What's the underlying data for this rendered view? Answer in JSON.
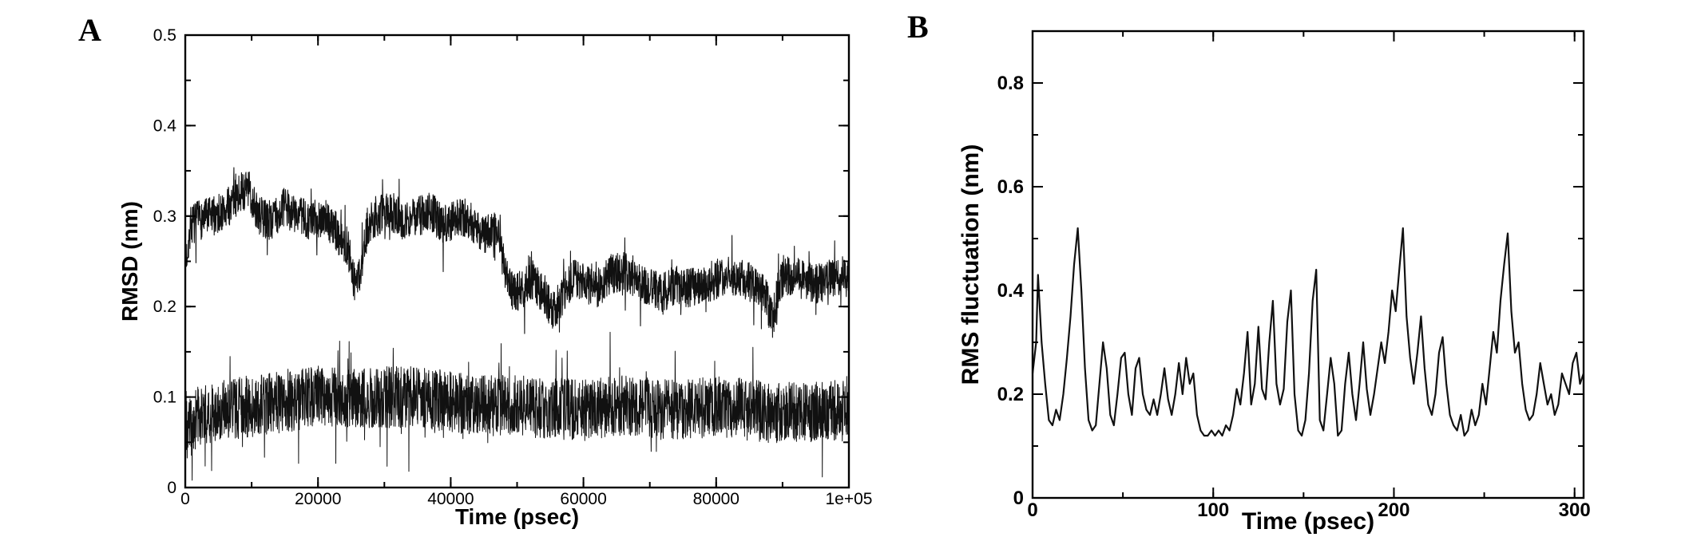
{
  "page": {
    "background": "#ffffff",
    "ink_color": "#000000"
  },
  "panels": [
    {
      "label": "A"
    },
    {
      "label": "B"
    }
  ],
  "chart_data": [
    {
      "type": "line",
      "panel": "A",
      "title": "",
      "xlabel": "Time (psec)",
      "ylabel": "RMSD (nm)",
      "xlim": [
        0,
        100000
      ],
      "ylim": [
        0,
        0.5
      ],
      "grid": false,
      "legend": null,
      "xticks": {
        "values": [
          0,
          20000,
          40000,
          60000,
          80000,
          100000
        ],
        "labels": [
          "0",
          "20000",
          "40000",
          "60000",
          "80000",
          "1e+05"
        ]
      },
      "yticks": {
        "values": [
          0,
          0.1,
          0.2,
          0.3,
          0.4,
          0.5
        ],
        "labels": [
          "0",
          "0.1",
          "0.2",
          "0.3",
          "0.4",
          "0.5"
        ]
      },
      "x_minor_step": 10000,
      "y_minor_step": 0.05,
      "series": [
        {
          "name": "upper trace (RMSD ~0.30 nm dropping to ~0.22 nm after 48000 psec)",
          "color": "#111111",
          "style": "noisy",
          "stroke_width": 1.1,
          "points_per_trace": 2800,
          "noise_amplitude": 0.022,
          "seed": 7,
          "envelope": [
            [
              0,
              0.245
            ],
            [
              800,
              0.29
            ],
            [
              2000,
              0.295
            ],
            [
              4000,
              0.3
            ],
            [
              6000,
              0.305
            ],
            [
              8000,
              0.325
            ],
            [
              9500,
              0.33
            ],
            [
              11000,
              0.3
            ],
            [
              13000,
              0.295
            ],
            [
              15000,
              0.31
            ],
            [
              17000,
              0.3
            ],
            [
              19000,
              0.295
            ],
            [
              21000,
              0.3
            ],
            [
              23000,
              0.28
            ],
            [
              24500,
              0.265
            ],
            [
              25500,
              0.225
            ],
            [
              26500,
              0.24
            ],
            [
              27500,
              0.29
            ],
            [
              29000,
              0.3
            ],
            [
              31000,
              0.305
            ],
            [
              33000,
              0.295
            ],
            [
              35000,
              0.3
            ],
            [
              37000,
              0.305
            ],
            [
              39000,
              0.29
            ],
            [
              41000,
              0.3
            ],
            [
              43000,
              0.295
            ],
            [
              45000,
              0.28
            ],
            [
              46500,
              0.285
            ],
            [
              47500,
              0.27
            ],
            [
              48500,
              0.23
            ],
            [
              49500,
              0.215
            ],
            [
              51000,
              0.22
            ],
            [
              52500,
              0.23
            ],
            [
              54000,
              0.21
            ],
            [
              55500,
              0.195
            ],
            [
              57000,
              0.215
            ],
            [
              58500,
              0.23
            ],
            [
              60000,
              0.225
            ],
            [
              62000,
              0.22
            ],
            [
              64000,
              0.235
            ],
            [
              66000,
              0.24
            ],
            [
              68000,
              0.23
            ],
            [
              70000,
              0.22
            ],
            [
              72000,
              0.215
            ],
            [
              74000,
              0.225
            ],
            [
              76000,
              0.22
            ],
            [
              78000,
              0.225
            ],
            [
              80000,
              0.23
            ],
            [
              82000,
              0.235
            ],
            [
              84000,
              0.23
            ],
            [
              86000,
              0.225
            ],
            [
              87500,
              0.21
            ],
            [
              88500,
              0.185
            ],
            [
              89500,
              0.225
            ],
            [
              91000,
              0.235
            ],
            [
              93000,
              0.23
            ],
            [
              95000,
              0.225
            ],
            [
              97000,
              0.23
            ],
            [
              99000,
              0.235
            ],
            [
              100000,
              0.23
            ]
          ]
        },
        {
          "name": "lower trace (RMSD ~0.09 nm throughout)",
          "color": "#111111",
          "style": "noisy",
          "stroke_width": 1.0,
          "points_per_trace": 2800,
          "noise_amplitude": 0.034,
          "seed": 23,
          "envelope": [
            [
              0,
              0.06
            ],
            [
              2000,
              0.08
            ],
            [
              5000,
              0.085
            ],
            [
              10000,
              0.09
            ],
            [
              15000,
              0.095
            ],
            [
              20000,
              0.1
            ],
            [
              25000,
              0.1
            ],
            [
              30000,
              0.1
            ],
            [
              35000,
              0.1
            ],
            [
              40000,
              0.095
            ],
            [
              45000,
              0.09
            ],
            [
              50000,
              0.09
            ],
            [
              55000,
              0.088
            ],
            [
              60000,
              0.085
            ],
            [
              65000,
              0.09
            ],
            [
              70000,
              0.088
            ],
            [
              75000,
              0.085
            ],
            [
              80000,
              0.09
            ],
            [
              85000,
              0.086
            ],
            [
              90000,
              0.082
            ],
            [
              95000,
              0.085
            ],
            [
              100000,
              0.085
            ]
          ]
        }
      ]
    },
    {
      "type": "line",
      "panel": "B",
      "title": "",
      "xlabel": "Time (psec)",
      "ylabel": "RMS fluctuation  (nm)",
      "xlim": [
        0,
        305
      ],
      "ylim": [
        0,
        0.9
      ],
      "grid": false,
      "legend": null,
      "xticks": {
        "values": [
          0,
          100,
          200,
          300
        ],
        "labels": [
          "0",
          "100",
          "200",
          "300"
        ]
      },
      "yticks": {
        "values": [
          0,
          0.2,
          0.4,
          0.6,
          0.8
        ],
        "labels": [
          "0",
          "0.2",
          "0.4",
          "0.6",
          "0.8"
        ]
      },
      "x_minor_step": 50,
      "y_minor_step": 0.1,
      "series": [
        {
          "name": "RMS fluctuation trace",
          "color": "#111111",
          "style": "explicit",
          "stroke_width": 2.2,
          "points": [
            [
              0,
              0.24
            ],
            [
              2,
              0.3
            ],
            [
              3,
              0.43
            ],
            [
              5,
              0.3
            ],
            [
              7,
              0.22
            ],
            [
              9,
              0.15
            ],
            [
              11,
              0.14
            ],
            [
              13,
              0.17
            ],
            [
              15,
              0.15
            ],
            [
              17,
              0.2
            ],
            [
              19,
              0.27
            ],
            [
              21,
              0.35
            ],
            [
              23,
              0.45
            ],
            [
              25,
              0.52
            ],
            [
              27,
              0.4
            ],
            [
              29,
              0.25
            ],
            [
              31,
              0.15
            ],
            [
              33,
              0.13
            ],
            [
              35,
              0.14
            ],
            [
              37,
              0.22
            ],
            [
              39,
              0.3
            ],
            [
              41,
              0.25
            ],
            [
              43,
              0.16
            ],
            [
              45,
              0.14
            ],
            [
              47,
              0.2
            ],
            [
              49,
              0.27
            ],
            [
              51,
              0.28
            ],
            [
              53,
              0.2
            ],
            [
              55,
              0.16
            ],
            [
              57,
              0.25
            ],
            [
              59,
              0.27
            ],
            [
              61,
              0.2
            ],
            [
              63,
              0.17
            ],
            [
              65,
              0.16
            ],
            [
              67,
              0.19
            ],
            [
              69,
              0.16
            ],
            [
              71,
              0.2
            ],
            [
              73,
              0.25
            ],
            [
              75,
              0.19
            ],
            [
              77,
              0.16
            ],
            [
              79,
              0.2
            ],
            [
              81,
              0.26
            ],
            [
              83,
              0.2
            ],
            [
              85,
              0.27
            ],
            [
              87,
              0.22
            ],
            [
              89,
              0.24
            ],
            [
              91,
              0.16
            ],
            [
              93,
              0.13
            ],
            [
              95,
              0.12
            ],
            [
              97,
              0.12
            ],
            [
              99,
              0.13
            ],
            [
              101,
              0.12
            ],
            [
              103,
              0.13
            ],
            [
              105,
              0.12
            ],
            [
              107,
              0.14
            ],
            [
              109,
              0.13
            ],
            [
              111,
              0.16
            ],
            [
              113,
              0.21
            ],
            [
              115,
              0.18
            ],
            [
              117,
              0.24
            ],
            [
              119,
              0.32
            ],
            [
              121,
              0.18
            ],
            [
              123,
              0.22
            ],
            [
              125,
              0.33
            ],
            [
              127,
              0.21
            ],
            [
              129,
              0.19
            ],
            [
              131,
              0.3
            ],
            [
              133,
              0.38
            ],
            [
              135,
              0.22
            ],
            [
              137,
              0.18
            ],
            [
              139,
              0.21
            ],
            [
              141,
              0.34
            ],
            [
              143,
              0.4
            ],
            [
              145,
              0.2
            ],
            [
              147,
              0.13
            ],
            [
              149,
              0.12
            ],
            [
              151,
              0.15
            ],
            [
              153,
              0.24
            ],
            [
              155,
              0.38
            ],
            [
              157,
              0.44
            ],
            [
              159,
              0.15
            ],
            [
              161,
              0.13
            ],
            [
              163,
              0.2
            ],
            [
              165,
              0.27
            ],
            [
              167,
              0.22
            ],
            [
              169,
              0.12
            ],
            [
              171,
              0.13
            ],
            [
              173,
              0.22
            ],
            [
              175,
              0.28
            ],
            [
              177,
              0.2
            ],
            [
              179,
              0.15
            ],
            [
              181,
              0.22
            ],
            [
              183,
              0.3
            ],
            [
              185,
              0.21
            ],
            [
              187,
              0.16
            ],
            [
              189,
              0.2
            ],
            [
              191,
              0.25
            ],
            [
              193,
              0.3
            ],
            [
              195,
              0.26
            ],
            [
              197,
              0.32
            ],
            [
              199,
              0.4
            ],
            [
              201,
              0.36
            ],
            [
              203,
              0.44
            ],
            [
              205,
              0.52
            ],
            [
              207,
              0.35
            ],
            [
              209,
              0.27
            ],
            [
              211,
              0.22
            ],
            [
              213,
              0.28
            ],
            [
              215,
              0.35
            ],
            [
              217,
              0.25
            ],
            [
              219,
              0.18
            ],
            [
              221,
              0.16
            ],
            [
              223,
              0.2
            ],
            [
              225,
              0.28
            ],
            [
              227,
              0.31
            ],
            [
              229,
              0.22
            ],
            [
              231,
              0.16
            ],
            [
              233,
              0.14
            ],
            [
              235,
              0.13
            ],
            [
              237,
              0.16
            ],
            [
              239,
              0.12
            ],
            [
              241,
              0.13
            ],
            [
              243,
              0.17
            ],
            [
              245,
              0.14
            ],
            [
              247,
              0.16
            ],
            [
              249,
              0.22
            ],
            [
              251,
              0.18
            ],
            [
              253,
              0.25
            ],
            [
              255,
              0.32
            ],
            [
              257,
              0.28
            ],
            [
              259,
              0.38
            ],
            [
              261,
              0.45
            ],
            [
              263,
              0.51
            ],
            [
              265,
              0.36
            ],
            [
              267,
              0.28
            ],
            [
              269,
              0.3
            ],
            [
              271,
              0.22
            ],
            [
              273,
              0.17
            ],
            [
              275,
              0.15
            ],
            [
              277,
              0.16
            ],
            [
              279,
              0.2
            ],
            [
              281,
              0.26
            ],
            [
              283,
              0.22
            ],
            [
              285,
              0.18
            ],
            [
              287,
              0.2
            ],
            [
              289,
              0.16
            ],
            [
              291,
              0.18
            ],
            [
              293,
              0.24
            ],
            [
              295,
              0.22
            ],
            [
              297,
              0.2
            ],
            [
              299,
              0.26
            ],
            [
              301,
              0.28
            ],
            [
              303,
              0.22
            ],
            [
              305,
              0.24
            ]
          ]
        }
      ]
    }
  ]
}
